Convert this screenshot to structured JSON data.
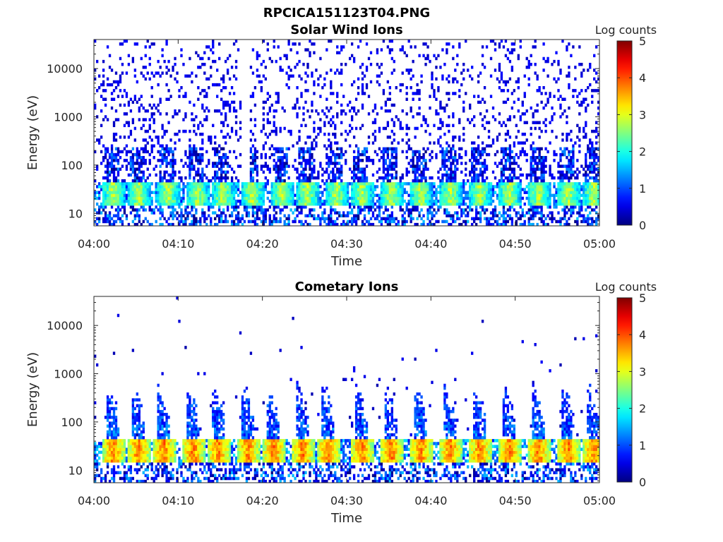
{
  "figure": {
    "title": "RPCICA151123T04.PNG"
  },
  "chart_data": [
    {
      "type": "heatmap",
      "title": "Solar Wind Ions",
      "xlabel": "Time",
      "ylabel": "Energy (eV)",
      "xlim": [
        "04:00",
        "05:00"
      ],
      "xticks": [
        "04:00",
        "04:10",
        "04:20",
        "04:30",
        "04:40",
        "04:50",
        "05:00"
      ],
      "ylim": [
        5.5,
        40000
      ],
      "yscale": "log",
      "yticks": [
        10,
        100,
        1000,
        10000
      ],
      "yticklabels": [
        "10",
        "100",
        "1000",
        "10000"
      ],
      "colorbar": {
        "label": "Log counts",
        "range": [
          0,
          5
        ],
        "ticks": [
          "0",
          "1",
          "2",
          "3",
          "4",
          "5"
        ],
        "colormap": "jet"
      },
      "features": {
        "periodic_bursts_start_minutes": [
          1.5,
          4.5,
          8,
          11.5,
          14.5,
          18,
          21.5,
          24.5,
          28,
          31,
          34.5,
          38,
          41.5,
          45,
          48.5,
          52,
          55.5,
          58.5
        ],
        "core_band_energy_eV": [
          15,
          45
        ],
        "core_band_log_counts": 2.8,
        "sparse_high_energy_log_counts": 0.3,
        "gap_minutes": [
          17.5,
          18.5
        ]
      }
    },
    {
      "type": "heatmap",
      "title": "Cometary Ions",
      "xlabel": "Time",
      "ylabel": "Energy (eV)",
      "xlim": [
        "04:00",
        "05:00"
      ],
      "xticks": [
        "04:00",
        "04:10",
        "04:20",
        "04:30",
        "04:40",
        "04:50",
        "05:00"
      ],
      "ylim": [
        5.5,
        40000
      ],
      "yscale": "log",
      "yticks": [
        10,
        100,
        1000,
        10000
      ],
      "yticklabels": [
        "10",
        "100",
        "1000",
        "10000"
      ],
      "colorbar": {
        "label": "Log counts",
        "range": [
          0,
          5
        ],
        "ticks": [
          "0",
          "1",
          "2",
          "3",
          "4",
          "5"
        ],
        "colormap": "jet"
      },
      "features": {
        "periodic_bursts_start_minutes": [
          1.5,
          4.5,
          7.5,
          11,
          14,
          17.5,
          20.5,
          24,
          27,
          31,
          34.5,
          38,
          41.5,
          45,
          48.5,
          52,
          55.5,
          58.5
        ],
        "core_band_energy_eV": [
          15,
          45
        ],
        "core_band_log_counts": 3.8,
        "burst_peak_energy_eV": [
          200,
          800
        ],
        "sparse_high_energy_log_counts": 0.2
      }
    }
  ]
}
